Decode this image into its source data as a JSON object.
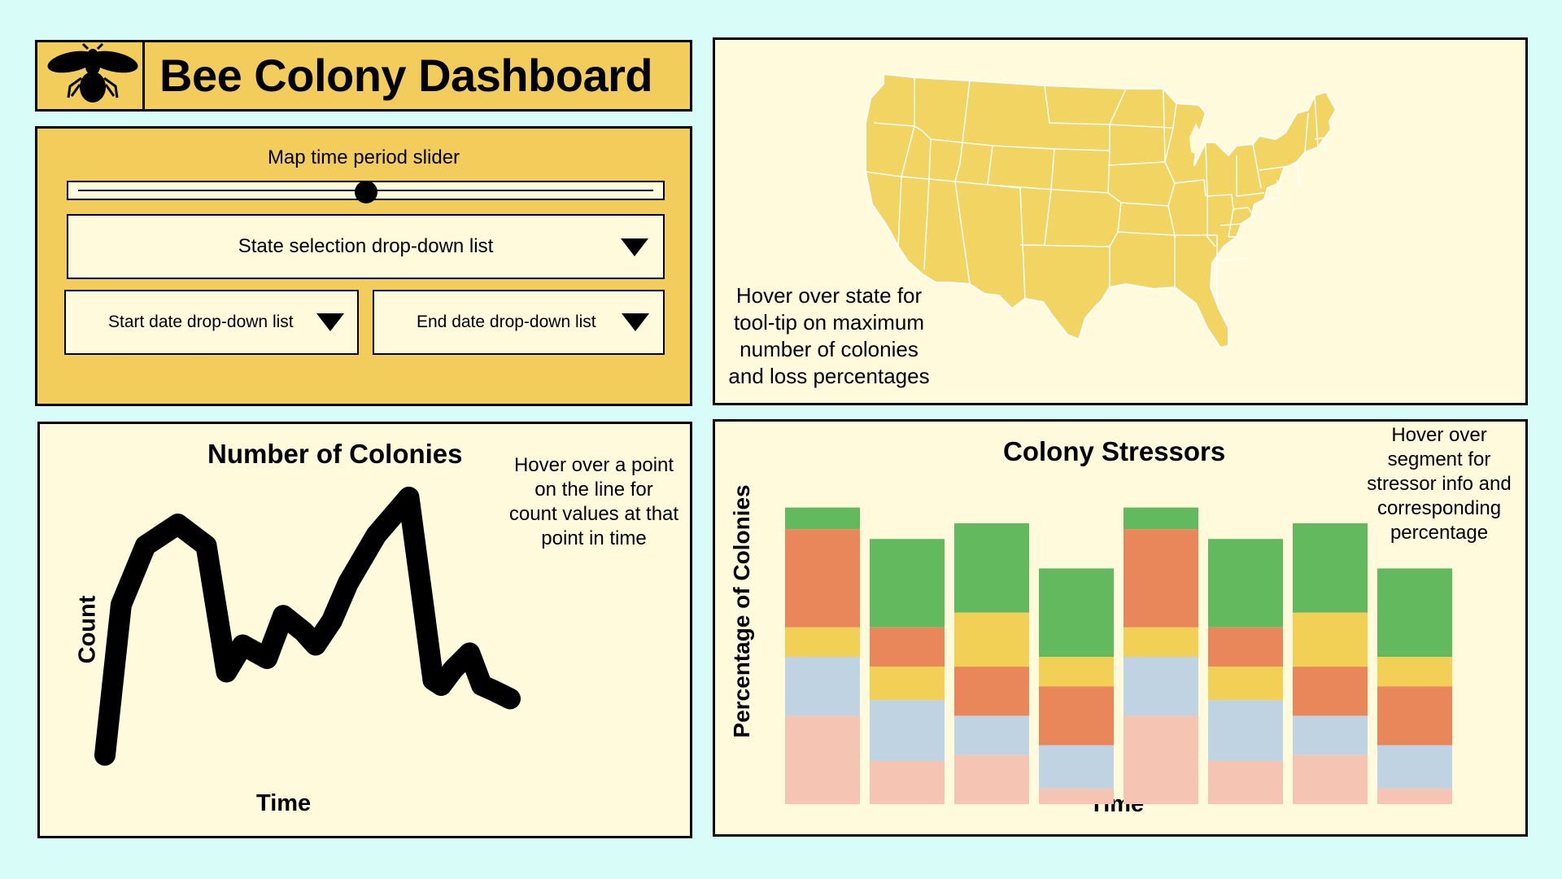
{
  "header": {
    "title": "Bee Colony Dashboard",
    "logo_icon": "bee-icon"
  },
  "controls": {
    "slider_label": "Map time period slider",
    "slider_value": 0.5,
    "state_dropdown_label": "State selection drop-down list",
    "start_date_label": "Start date drop-down list",
    "end_date_label": "End date drop-down list"
  },
  "map": {
    "note": "Hover over state for tool-tip on maximum number of colonies and loss percentages",
    "fill_color": "#f2d462"
  },
  "line_chart": {
    "title": "Number of Colonies",
    "xlabel": "Time",
    "ylabel": "Count",
    "note": "Hover over a point on the line for count values at that point in time",
    "chart_data": {
      "type": "line",
      "title": "Number of Colonies",
      "xlabel": "Time",
      "ylabel": "Count",
      "x": [
        0,
        0.04,
        0.1,
        0.18,
        0.25,
        0.3,
        0.34,
        0.4,
        0.44,
        0.49,
        0.52,
        0.56,
        0.6,
        0.67,
        0.75,
        0.79,
        0.81,
        0.83,
        0.86,
        0.9,
        0.93,
        0.96,
        1.0
      ],
      "values": [
        0.04,
        0.6,
        0.82,
        0.9,
        0.82,
        0.35,
        0.45,
        0.4,
        0.56,
        0.5,
        0.45,
        0.54,
        0.68,
        0.86,
        1.0,
        0.55,
        0.32,
        0.3,
        0.36,
        0.42,
        0.3,
        0.28,
        0.25
      ],
      "color": "#000000"
    }
  },
  "bar_chart": {
    "title": "Colony Stressors",
    "xlabel": "Time",
    "ylabel": "Percentage of Colonies",
    "note": "Hover over segment for stressor info and corresponding percentage",
    "chart_data": {
      "type": "bar",
      "stacked": true,
      "title": "Colony Stressors",
      "xlabel": "Time",
      "ylabel": "Percentage of Colonies",
      "ylim": [
        0,
        300
      ],
      "bars": [
        [
          {
            "v": 90,
            "c": "#f5c4b3"
          },
          {
            "v": 60,
            "c": "#bfd3e3"
          },
          {
            "v": 30,
            "c": "#f2d055"
          },
          {
            "v": 100,
            "c": "#e9875b"
          },
          {
            "v": 22,
            "c": "#63b95e"
          }
        ],
        [
          {
            "v": 44,
            "c": "#f5c4b3"
          },
          {
            "v": 62,
            "c": "#bfd3e3"
          },
          {
            "v": 34,
            "c": "#f2d055"
          },
          {
            "v": 40,
            "c": "#e9875b"
          },
          {
            "v": 90,
            "c": "#63b95e"
          }
        ],
        [
          {
            "v": 50,
            "c": "#f5c4b3"
          },
          {
            "v": 40,
            "c": "#bfd3e3"
          },
          {
            "v": 50,
            "c": "#e9875b"
          },
          {
            "v": 55,
            "c": "#f2d055"
          },
          {
            "v": 91,
            "c": "#63b95e"
          }
        ],
        [
          {
            "v": 16,
            "c": "#f5c4b3"
          },
          {
            "v": 44,
            "c": "#bfd3e3"
          },
          {
            "v": 60,
            "c": "#e9875b"
          },
          {
            "v": 30,
            "c": "#f2d055"
          },
          {
            "v": 90,
            "c": "#63b95e"
          }
        ],
        [
          {
            "v": 90,
            "c": "#f5c4b3"
          },
          {
            "v": 60,
            "c": "#bfd3e3"
          },
          {
            "v": 30,
            "c": "#f2d055"
          },
          {
            "v": 100,
            "c": "#e9875b"
          },
          {
            "v": 22,
            "c": "#63b95e"
          }
        ],
        [
          {
            "v": 44,
            "c": "#f5c4b3"
          },
          {
            "v": 62,
            "c": "#bfd3e3"
          },
          {
            "v": 34,
            "c": "#f2d055"
          },
          {
            "v": 40,
            "c": "#e9875b"
          },
          {
            "v": 90,
            "c": "#63b95e"
          }
        ],
        [
          {
            "v": 50,
            "c": "#f5c4b3"
          },
          {
            "v": 40,
            "c": "#bfd3e3"
          },
          {
            "v": 50,
            "c": "#e9875b"
          },
          {
            "v": 55,
            "c": "#f2d055"
          },
          {
            "v": 91,
            "c": "#63b95e"
          }
        ],
        [
          {
            "v": 16,
            "c": "#f5c4b3"
          },
          {
            "v": 44,
            "c": "#bfd3e3"
          },
          {
            "v": 60,
            "c": "#e9875b"
          },
          {
            "v": 30,
            "c": "#f2d055"
          },
          {
            "v": 90,
            "c": "#63b95e"
          }
        ]
      ]
    }
  }
}
